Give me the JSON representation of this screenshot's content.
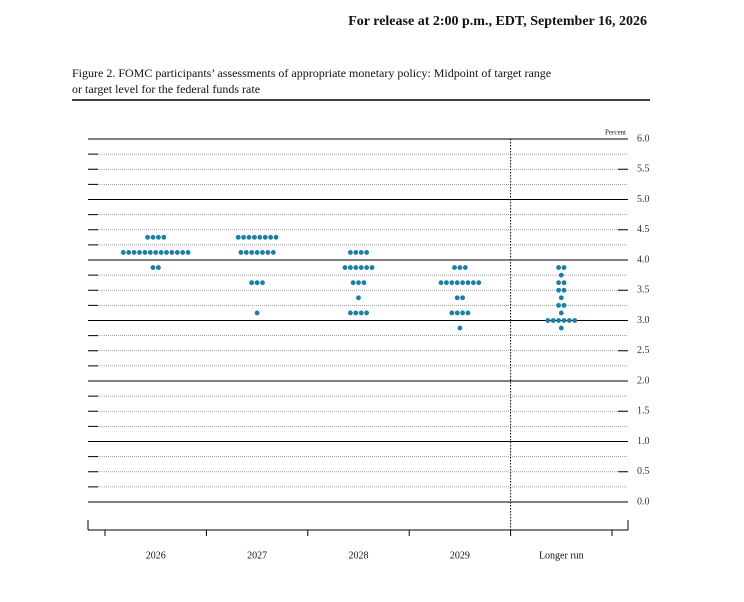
{
  "header": "For release at 2:00 p.m., EDT, September 16, 2026",
  "chart_data": {
    "type": "dot",
    "title": "Figure 2. FOMC participants’ assessments of appropriate monetary policy: Midpoint of target range",
    "subtitle": "or target level for the federal funds rate",
    "y_unit": "Percent",
    "color": "#1a7fa0",
    "categories": [
      "2026",
      "2027",
      "2028",
      "2029",
      "Longer run"
    ],
    "values": [
      [
        4.375,
        4.375,
        4.375,
        4.375,
        4.125,
        4.125,
        4.125,
        4.125,
        4.125,
        4.125,
        4.125,
        4.125,
        4.125,
        4.125,
        4.125,
        4.125,
        4.125,
        3.875,
        3.875
      ],
      [
        4.375,
        4.375,
        4.375,
        4.375,
        4.375,
        4.375,
        4.375,
        4.375,
        4.125,
        4.125,
        4.125,
        4.125,
        4.125,
        4.125,
        4.125,
        3.625,
        3.625,
        3.625,
        3.125
      ],
      [
        4.125,
        4.125,
        4.125,
        4.125,
        3.875,
        3.875,
        3.875,
        3.875,
        3.875,
        3.875,
        3.625,
        3.625,
        3.625,
        3.375,
        3.125,
        3.125,
        3.125,
        3.125
      ],
      [
        3.875,
        3.875,
        3.875,
        3.625,
        3.625,
        3.625,
        3.625,
        3.625,
        3.625,
        3.625,
        3.625,
        3.375,
        3.375,
        3.125,
        3.125,
        3.125,
        3.125,
        2.875
      ],
      [
        3.875,
        3.875,
        3.75,
        3.625,
        3.625,
        3.5,
        3.5,
        3.375,
        3.25,
        3.25,
        3.125,
        3.0,
        3.0,
        3.0,
        3.0,
        3.0,
        3.0,
        2.875
      ]
    ],
    "ylim": [
      0,
      6
    ],
    "yticks": [
      {
        "value": 0,
        "label": "0.0"
      },
      {
        "value": 0.5,
        "label": "0.5"
      },
      {
        "value": 1,
        "label": "1.0"
      },
      {
        "value": 1.5,
        "label": "1.5"
      },
      {
        "value": 2,
        "label": "2.0"
      },
      {
        "value": 2.5,
        "label": "2.5"
      },
      {
        "value": 3,
        "label": "3.0"
      },
      {
        "value": 3.5,
        "label": "3.5"
      },
      {
        "value": 4,
        "label": "4.0"
      },
      {
        "value": 4.5,
        "label": "4.5"
      },
      {
        "value": 5,
        "label": "5.0"
      },
      {
        "value": 5.5,
        "label": "5.5"
      },
      {
        "value": 6,
        "label": "6.0"
      }
    ],
    "major_grid": [
      0,
      1,
      2,
      3,
      4,
      5,
      6
    ],
    "minor_yticks": [
      0.25,
      0.5,
      0.75,
      1.25,
      1.5,
      1.75,
      2.25,
      2.5,
      2.75,
      3.25,
      3.5,
      3.75,
      4.25,
      4.5,
      4.75,
      5.25,
      5.5,
      5.75
    ]
  }
}
